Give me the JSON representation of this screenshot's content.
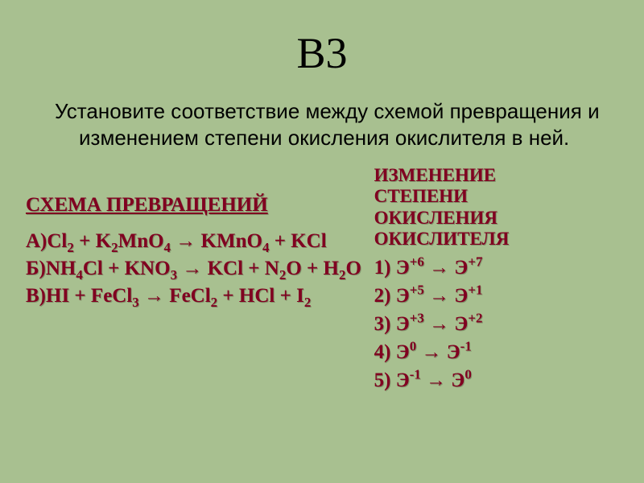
{
  "background_color": "#a8c090",
  "accent_color": "#800020",
  "text_color": "#000000",
  "title": "В3",
  "prompt": "Установите соответствие между схемой превращения и изменением степени окисления окислителя в ней.",
  "left": {
    "heading": "СХЕМА ПРЕВРАЩЕНИЙ",
    "equations": [
      {
        "label": "А)",
        "formula_html": "Cl<sub>2</sub> + K<sub>2</sub>MnO<sub>4</sub> → KMnO<sub>4</sub> + KCl"
      },
      {
        "label": "Б)",
        "formula_html": "NH<sub>4</sub>Cl + KNO<sub>3</sub> → KCl + N<sub>2</sub>O + H<sub>2</sub>O"
      },
      {
        "label": "В)",
        "formula_html": "HI + FeCl<sub>3</sub> → FeCl<sub>2</sub> + HCl + I<sub>2</sub>"
      }
    ]
  },
  "right": {
    "heading_lines": [
      "ИЗМЕНЕНИЕ",
      "СТЕПЕНИ",
      "ОКИСЛЕНИЯ",
      "ОКИСЛИТЕЛЯ"
    ],
    "options": [
      {
        "n": "1)",
        "from_sup": "+6",
        "to_sup": "+7"
      },
      {
        "n": "2)",
        "from_sup": "+5",
        "to_sup": "+1"
      },
      {
        "n": "3)",
        "from_sup": "+3",
        "to_sup": "+2"
      },
      {
        "n": "4)",
        "from_sup": "0",
        "to_sup": "-1"
      },
      {
        "n": "5)",
        "from_sup": "-1",
        "to_sup": "0"
      }
    ]
  },
  "fonts": {
    "title_family": "Arial",
    "title_size_pt": 40,
    "body_family": "Arial",
    "body_size_pt": 20,
    "accent_family": "Times New Roman",
    "accent_size_pt": 19
  }
}
